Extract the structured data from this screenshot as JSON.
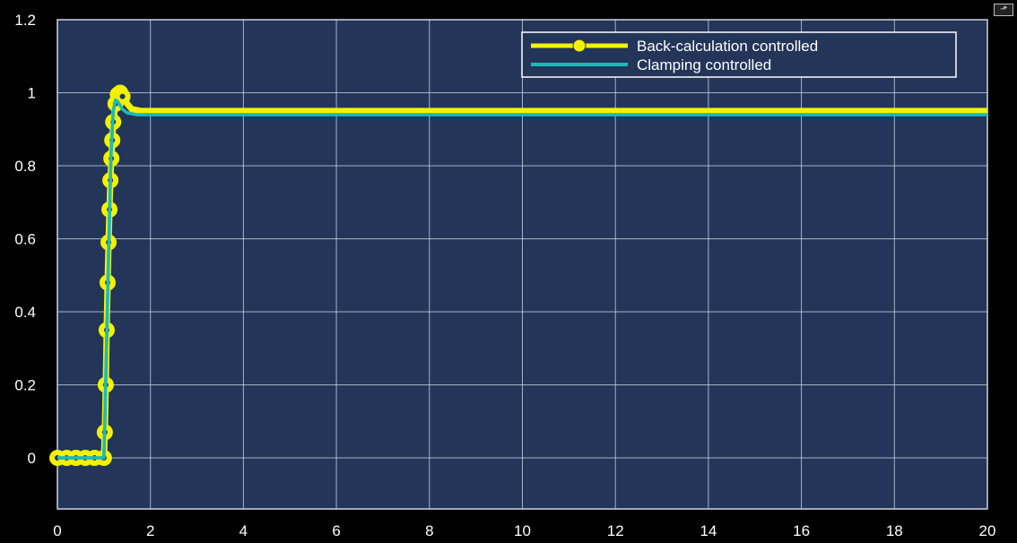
{
  "chart_data": {
    "type": "line",
    "title": "",
    "xlabel": "",
    "ylabel": "",
    "xlim": [
      0,
      20
    ],
    "ylim": [
      -0.14,
      1.2
    ],
    "x_ticks": [
      "0",
      "2",
      "4",
      "6",
      "8",
      "10",
      "12",
      "14",
      "16",
      "18",
      "20"
    ],
    "y_ticks": [
      "0",
      "0.2",
      "0.4",
      "0.6",
      "0.8",
      "1",
      "1.2"
    ],
    "grid": true,
    "legend_position": "top-right",
    "background_color": "#233559",
    "series": [
      {
        "name": "Back-calculation controlled",
        "color": "#f2f200",
        "marker": "o",
        "x": [
          0,
          0.2,
          0.4,
          0.6,
          0.8,
          1.0,
          1.02,
          1.04,
          1.06,
          1.08,
          1.1,
          1.12,
          1.14,
          1.16,
          1.18,
          1.2,
          1.25,
          1.3,
          1.35,
          1.4,
          1.5,
          1.6,
          1.8,
          2.0,
          5,
          10,
          15,
          20
        ],
        "y": [
          0,
          0,
          0,
          0,
          0,
          0,
          0.07,
          0.2,
          0.35,
          0.48,
          0.59,
          0.68,
          0.76,
          0.82,
          0.87,
          0.92,
          0.97,
          0.995,
          1.0,
          0.99,
          0.97,
          0.955,
          0.95,
          0.95,
          0.95,
          0.95,
          0.95,
          0.95
        ]
      },
      {
        "name": "Clamping controlled",
        "color": "#1fb8b8",
        "marker": "none",
        "x": [
          0,
          1.0,
          1.02,
          1.1,
          1.15,
          1.2,
          1.25,
          1.3,
          1.4,
          1.5,
          1.7,
          2.0,
          5,
          10,
          15,
          20
        ],
        "y": [
          0,
          0,
          0.1,
          0.55,
          0.82,
          0.95,
          0.98,
          0.975,
          0.955,
          0.945,
          0.94,
          0.94,
          0.94,
          0.94,
          0.94,
          0.94
        ]
      }
    ]
  }
}
